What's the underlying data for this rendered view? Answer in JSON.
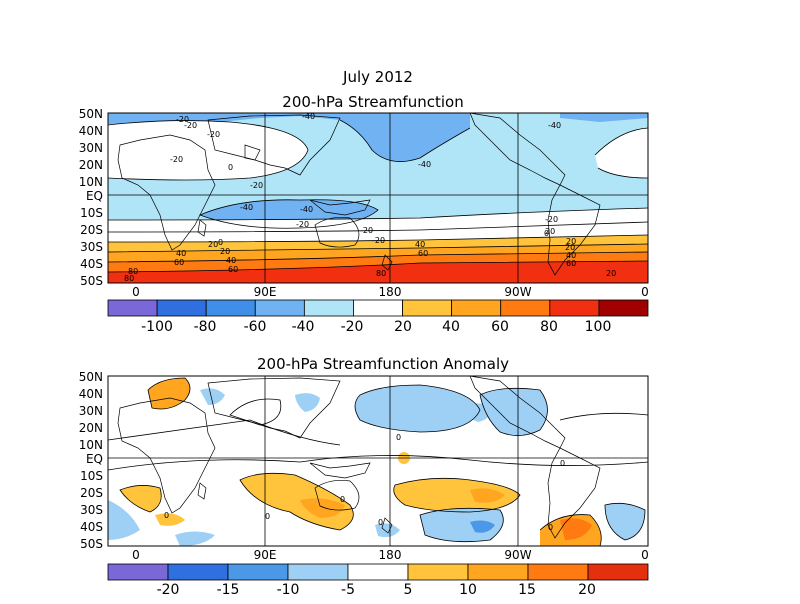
{
  "header": {
    "date": "July 2012",
    "title1": "200-hPa Streamfunction",
    "title2": "200-hPa Streamfunction Anomaly"
  },
  "axes": {
    "lat_labels": [
      "50N",
      "40N",
      "30N",
      "20N",
      "10N",
      "EQ",
      "10S",
      "20S",
      "30S",
      "40S",
      "50S"
    ],
    "lon_labels": [
      "0",
      "90E",
      "180",
      "90W",
      "0"
    ]
  },
  "colorbar1": {
    "labels": [
      "-100",
      "-80",
      "-60",
      "-40",
      "-20",
      "20",
      "40",
      "60",
      "80",
      "100"
    ],
    "colors": [
      "#7b68d8",
      "#2f6fdf",
      "#3f8fe8",
      "#71b2f2",
      "#b0e4f7",
      "#ffffff",
      "#ffc43c",
      "#ffa51f",
      "#ff7a10",
      "#f03010",
      "#a00000"
    ]
  },
  "colorbar2": {
    "labels": [
      "-20",
      "-15",
      "-10",
      "-5",
      "5",
      "10",
      "15",
      "20"
    ],
    "colors": [
      "#7b68d8",
      "#2f6fdf",
      "#4b98e9",
      "#9ecff4",
      "#ffffff",
      "#ffc43c",
      "#ffa51f",
      "#ff7a10",
      "#e53010"
    ]
  },
  "map1": {
    "contour_labels": [
      "-20",
      "-40",
      "-20",
      "-20",
      "0",
      "-20",
      "-40",
      "-40",
      "-20",
      "-40",
      "-20",
      "-20",
      "0",
      "-20",
      "20",
      "20",
      "40",
      "40",
      "60",
      "60",
      "80",
      "20",
      "20",
      "40",
      "60",
      "80",
      "20",
      "40",
      "60",
      "80",
      "-40",
      "-20",
      "20",
      "0"
    ]
  },
  "map2": {
    "contour_labels": [
      "0",
      "0",
      "0",
      "0",
      "0",
      "0",
      "0"
    ]
  }
}
